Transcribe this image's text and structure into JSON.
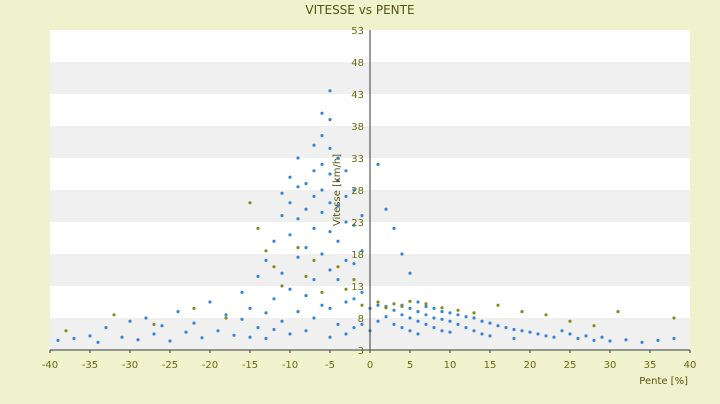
{
  "chart_data": {
    "type": "scatter",
    "title": "VITESSE vs PENTE",
    "xlabel": "Pente [%]",
    "ylabel": "Vitesse [km/h]",
    "xlim": [
      -40,
      40
    ],
    "ylim": [
      3,
      53
    ],
    "x_ticks": [
      "-40",
      "-35",
      "-30",
      "-25",
      "-20",
      "-15",
      "-10",
      "-5",
      "0",
      "5",
      "10",
      "15",
      "20",
      "25",
      "30",
      "35",
      "40"
    ],
    "y_ticks": [
      "3",
      "8",
      "13",
      "18",
      "23",
      "28",
      "33",
      "38",
      "43",
      "48",
      "53"
    ],
    "grid": "horizontal alternating bands",
    "legend": "none",
    "colors": {
      "series_main": "#3a86d6",
      "series_secondary": "#8a8a20",
      "band": "#f0f0f0",
      "plot_bg": "#ffffff",
      "axis_text": "#6b6b10"
    },
    "series": [
      {
        "color": "#3a86d6",
        "points": [
          [
            -39,
            4.5
          ],
          [
            -37,
            4.8
          ],
          [
            -35,
            5.2
          ],
          [
            -34,
            4.2
          ],
          [
            -33,
            6.5
          ],
          [
            -31,
            5.0
          ],
          [
            -30,
            7.5
          ],
          [
            -29,
            4.6
          ],
          [
            -28,
            8.0
          ],
          [
            -27,
            5.5
          ],
          [
            -26,
            6.8
          ],
          [
            -25,
            4.4
          ],
          [
            -24,
            9.0
          ],
          [
            -23,
            5.8
          ],
          [
            -22,
            7.2
          ],
          [
            -21,
            4.9
          ],
          [
            -20,
            10.5
          ],
          [
            -19,
            6.0
          ],
          [
            -18,
            8.5
          ],
          [
            -17,
            5.3
          ],
          [
            -16,
            12.0
          ],
          [
            -16,
            7.8
          ],
          [
            -15,
            9.5
          ],
          [
            -15,
            5.0
          ],
          [
            -14,
            14.5
          ],
          [
            -14,
            6.5
          ],
          [
            -13,
            17.0
          ],
          [
            -13,
            8.8
          ],
          [
            -13,
            4.8
          ],
          [
            -12,
            20.0
          ],
          [
            -12,
            11.0
          ],
          [
            -12,
            6.2
          ],
          [
            -11,
            24.0
          ],
          [
            -11,
            27.5
          ],
          [
            -11,
            15.0
          ],
          [
            -11,
            7.5
          ],
          [
            -10,
            30.0
          ],
          [
            -10,
            26.0
          ],
          [
            -10,
            21.0
          ],
          [
            -10,
            12.5
          ],
          [
            -10,
            5.5
          ],
          [
            -9,
            33.0
          ],
          [
            -9,
            28.5
          ],
          [
            -9,
            23.5
          ],
          [
            -9,
            17.5
          ],
          [
            -9,
            9.0
          ],
          [
            -8,
            29.0
          ],
          [
            -8,
            25.0
          ],
          [
            -8,
            19.0
          ],
          [
            -8,
            11.5
          ],
          [
            -8,
            6.0
          ],
          [
            -7,
            35.0
          ],
          [
            -7,
            31.0
          ],
          [
            -7,
            27.0
          ],
          [
            -7,
            22.0
          ],
          [
            -7,
            14.0
          ],
          [
            -7,
            8.0
          ],
          [
            -6,
            40.0
          ],
          [
            -6,
            36.5
          ],
          [
            -6,
            32.0
          ],
          [
            -6,
            28.0
          ],
          [
            -6,
            24.5
          ],
          [
            -6,
            18.0
          ],
          [
            -6,
            10.0
          ],
          [
            -5,
            43.5
          ],
          [
            -5,
            39.0
          ],
          [
            -5,
            34.5
          ],
          [
            -5,
            30.5
          ],
          [
            -5,
            26.0
          ],
          [
            -5,
            21.5
          ],
          [
            -5,
            15.5
          ],
          [
            -5,
            9.5
          ],
          [
            -5,
            5.0
          ],
          [
            -4,
            33.0
          ],
          [
            -4,
            29.5
          ],
          [
            -4,
            25.5
          ],
          [
            -4,
            20.0
          ],
          [
            -4,
            14.0
          ],
          [
            -4,
            7.0
          ],
          [
            -3,
            31.0
          ],
          [
            -3,
            27.0
          ],
          [
            -3,
            23.0
          ],
          [
            -3,
            17.0
          ],
          [
            -3,
            10.5
          ],
          [
            -3,
            5.5
          ],
          [
            -2,
            28.0
          ],
          [
            -2,
            22.5
          ],
          [
            -2,
            16.5
          ],
          [
            -2,
            11.0
          ],
          [
            -2,
            6.5
          ],
          [
            -1,
            24.0
          ],
          [
            -1,
            18.5
          ],
          [
            -1,
            12.0
          ],
          [
            -1,
            7.0
          ],
          [
            0,
            9.5
          ],
          [
            0,
            6.0
          ],
          [
            1,
            32.0
          ],
          [
            1,
            10.0
          ],
          [
            1,
            7.5
          ],
          [
            2,
            25.0
          ],
          [
            2,
            9.8
          ],
          [
            2,
            8.2
          ],
          [
            3,
            22.0
          ],
          [
            3,
            9.2
          ],
          [
            3,
            7.0
          ],
          [
            4,
            18.0
          ],
          [
            4,
            10.0
          ],
          [
            4,
            8.5
          ],
          [
            4,
            6.5
          ],
          [
            5,
            15.0
          ],
          [
            5,
            9.5
          ],
          [
            5,
            8.0
          ],
          [
            5,
            6.0
          ],
          [
            6,
            10.5
          ],
          [
            6,
            9.0
          ],
          [
            6,
            7.5
          ],
          [
            6,
            5.5
          ],
          [
            7,
            9.8
          ],
          [
            7,
            8.5
          ],
          [
            7,
            7.0
          ],
          [
            8,
            9.5
          ],
          [
            8,
            8.0
          ],
          [
            8,
            6.5
          ],
          [
            9,
            9.0
          ],
          [
            9,
            7.8
          ],
          [
            9,
            6.0
          ],
          [
            10,
            8.8
          ],
          [
            10,
            7.5
          ],
          [
            10,
            5.8
          ],
          [
            11,
            8.5
          ],
          [
            11,
            7.0
          ],
          [
            12,
            8.2
          ],
          [
            12,
            6.5
          ],
          [
            13,
            8.0
          ],
          [
            13,
            6.0
          ],
          [
            14,
            7.5
          ],
          [
            14,
            5.5
          ],
          [
            15,
            7.2
          ],
          [
            15,
            5.2
          ],
          [
            16,
            6.8
          ],
          [
            17,
            6.5
          ],
          [
            18,
            6.2
          ],
          [
            18,
            4.8
          ],
          [
            19,
            6.0
          ],
          [
            20,
            5.8
          ],
          [
            21,
            5.5
          ],
          [
            22,
            5.2
          ],
          [
            23,
            5.0
          ],
          [
            24,
            6.0
          ],
          [
            25,
            5.5
          ],
          [
            26,
            4.8
          ],
          [
            27,
            5.2
          ],
          [
            28,
            4.5
          ],
          [
            29,
            5.0
          ],
          [
            30,
            4.4
          ],
          [
            32,
            4.6
          ],
          [
            34,
            4.2
          ],
          [
            36,
            4.5
          ],
          [
            38,
            4.8
          ]
        ]
      },
      {
        "color": "#8a8a20",
        "points": [
          [
            -38,
            6.0
          ],
          [
            -32,
            8.5
          ],
          [
            -27,
            7.0
          ],
          [
            -22,
            9.5
          ],
          [
            -18,
            8.0
          ],
          [
            -15,
            26.0
          ],
          [
            -14,
            22.0
          ],
          [
            -13,
            18.5
          ],
          [
            -12,
            16.0
          ],
          [
            -11,
            13.0
          ],
          [
            -9,
            19.0
          ],
          [
            -8,
            14.5
          ],
          [
            -7,
            17.0
          ],
          [
            -6,
            12.0
          ],
          [
            -4,
            16.0
          ],
          [
            -3,
            12.5
          ],
          [
            -2,
            14.0
          ],
          [
            -1,
            10.0
          ],
          [
            1,
            10.5
          ],
          [
            2,
            9.6
          ],
          [
            3,
            10.2
          ],
          [
            4,
            9.8
          ],
          [
            5,
            10.6
          ],
          [
            7,
            10.2
          ],
          [
            9,
            9.6
          ],
          [
            11,
            9.2
          ],
          [
            13,
            8.8
          ],
          [
            16,
            10.0
          ],
          [
            19,
            9.0
          ],
          [
            22,
            8.5
          ],
          [
            25,
            7.5
          ],
          [
            28,
            6.8
          ],
          [
            31,
            9.0
          ],
          [
            38,
            8.0
          ]
        ]
      }
    ]
  }
}
